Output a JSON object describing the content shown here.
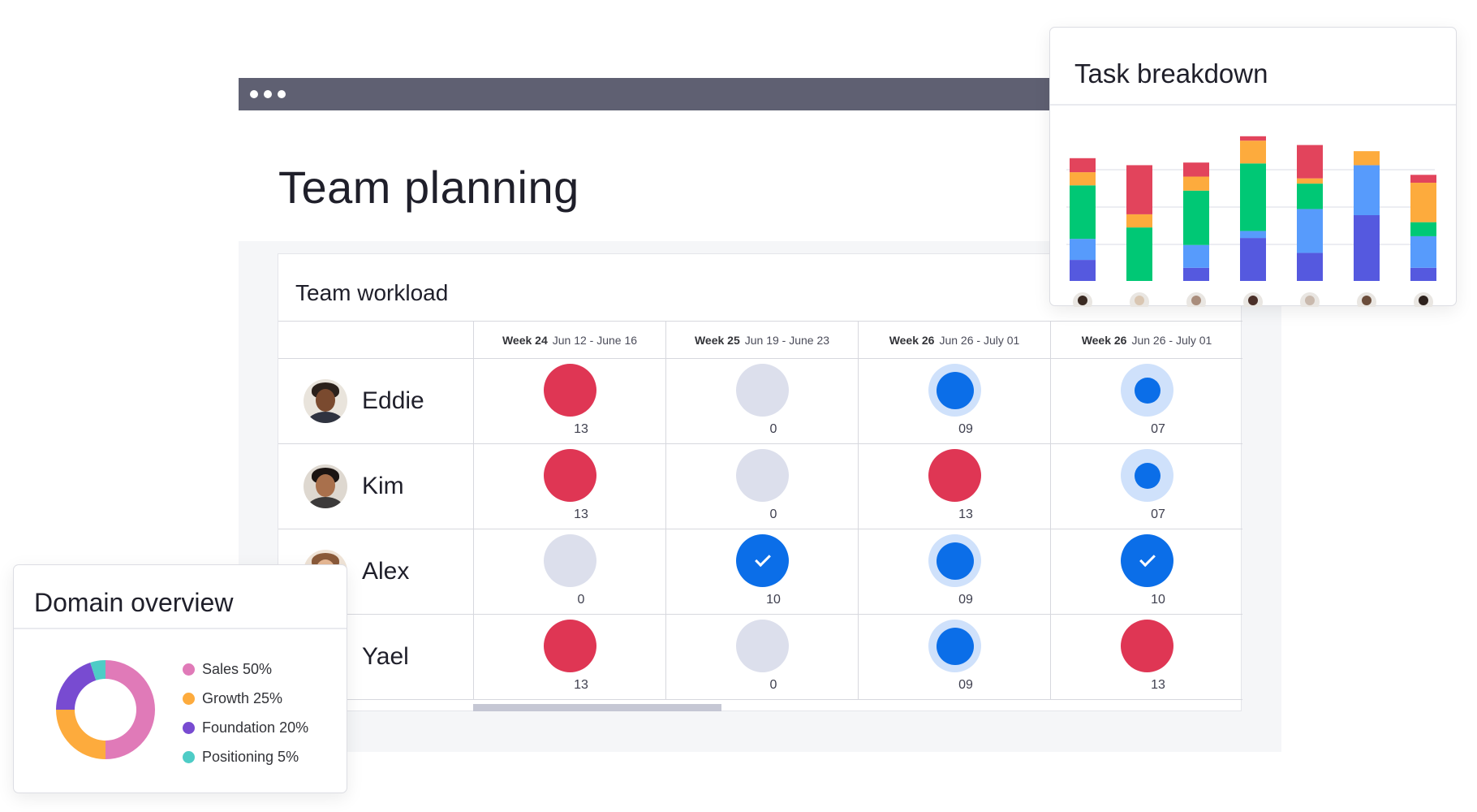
{
  "page": {
    "title": "Team planning"
  },
  "workload": {
    "title": "Team workload",
    "weeks": [
      {
        "label": "Week 24",
        "range": "Jun 12 - June 16"
      },
      {
        "label": "Week 25",
        "range": "Jun 19 - June 23"
      },
      {
        "label": "Week 26",
        "range": "Jun 26 - July 01"
      },
      {
        "label": "Week 26",
        "range": "Jun 26 - July 01"
      }
    ],
    "people": [
      {
        "name": "Eddie",
        "cells": [
          {
            "status": "over",
            "count": "13"
          },
          {
            "status": "empty",
            "count": "0"
          },
          {
            "status": "partial",
            "count": "09"
          },
          {
            "status": "light",
            "count": "07"
          }
        ]
      },
      {
        "name": "Kim",
        "cells": [
          {
            "status": "over",
            "count": "13"
          },
          {
            "status": "empty",
            "count": "0"
          },
          {
            "status": "over",
            "count": "13"
          },
          {
            "status": "light",
            "count": "07"
          }
        ]
      },
      {
        "name": "Alex",
        "cells": [
          {
            "status": "empty",
            "count": "0"
          },
          {
            "status": "done",
            "count": "10"
          },
          {
            "status": "partial",
            "count": "09"
          },
          {
            "status": "done",
            "count": "10"
          }
        ]
      },
      {
        "name": "Yael",
        "cells": [
          {
            "status": "over",
            "count": "13"
          },
          {
            "status": "empty",
            "count": "0"
          },
          {
            "status": "partial",
            "count": "09"
          },
          {
            "status": "over",
            "count": "13"
          }
        ]
      }
    ]
  },
  "task_breakdown": {
    "title": "Task breakdown",
    "colors": {
      "purple": "#5559df",
      "blue": "#579bfc",
      "green": "#00c875",
      "orange": "#fdab3d",
      "red": "#e2445c"
    },
    "chart_data": {
      "type": "bar",
      "stacked": true,
      "categories": [
        "",
        "",
        "",
        "",
        "",
        "",
        ""
      ],
      "series": [
        {
          "color": "#5559df",
          "values": [
            24,
            0,
            15,
            49,
            32,
            75,
            15
          ]
        },
        {
          "color": "#579bfc",
          "values": [
            24,
            0,
            26,
            8,
            50,
            57,
            36
          ]
        },
        {
          "color": "#00c875",
          "values": [
            61,
            61,
            62,
            77,
            29,
            0,
            16
          ]
        },
        {
          "color": "#fdab3d",
          "values": [
            15,
            15,
            16,
            26,
            6,
            16,
            45
          ]
        },
        {
          "color": "#e2445c",
          "values": [
            16,
            56,
            16,
            5,
            38,
            0,
            9
          ]
        }
      ]
    }
  },
  "domain_overview": {
    "title": "Domain overview",
    "chart_data": {
      "type": "pie",
      "donut": true,
      "slices": [
        {
          "label": "Sales 50%",
          "value": 50,
          "color": "#e07ab8"
        },
        {
          "label": "Growth 25%",
          "value": 25,
          "color": "#fdab3d"
        },
        {
          "label": "Foundation 20%",
          "value": 20,
          "color": "#784bd1"
        },
        {
          "label": "Positioning 5%",
          "value": 5,
          "color": "#4eccc6"
        }
      ]
    }
  }
}
